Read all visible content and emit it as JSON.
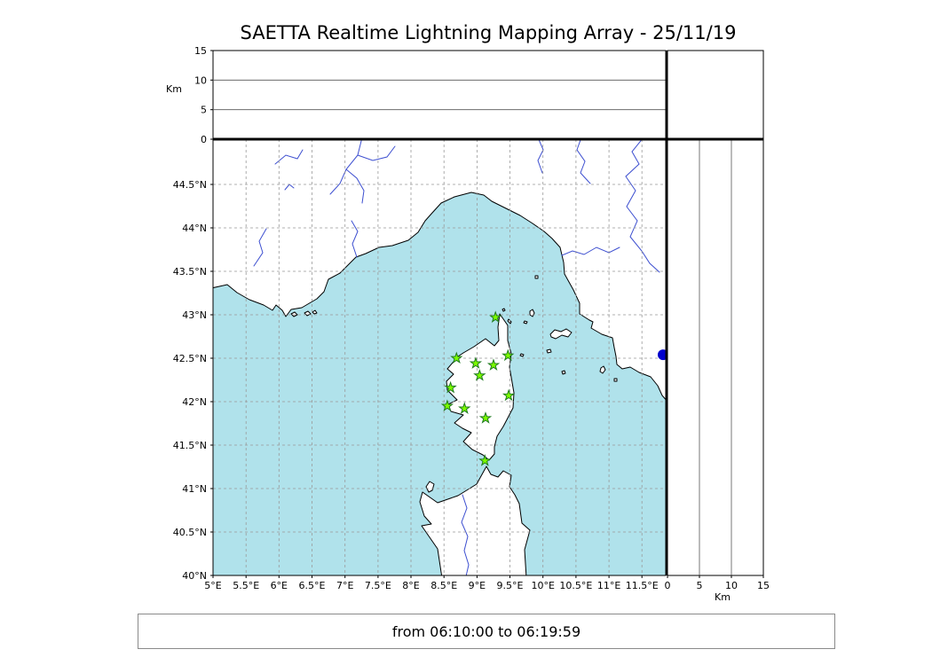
{
  "title": "SAETTA Realtime Lightning Mapping Array - 25/11/19",
  "footer": {
    "time_range": "from 06:10:00 to 06:19:59"
  },
  "map": {
    "lon_min": 5.0,
    "lon_max": 11.86,
    "lat_min": 40.0,
    "lat_max": 45.02,
    "lon_ticks": [
      5,
      5.5,
      6,
      6.5,
      7,
      7.5,
      8,
      8.5,
      9,
      9.5,
      10,
      10.5,
      11,
      11.5
    ],
    "lon_tick_labels": [
      "5°E",
      "5.5°E",
      "6°E",
      "6.5°E",
      "7°E",
      "7.5°E",
      "8°E",
      "8.5°E",
      "9°E",
      "9.5°E",
      "10°E",
      "10.5°E",
      "11°E",
      "11.5°E"
    ],
    "lat_ticks": [
      40,
      40.5,
      41,
      41.5,
      42,
      42.5,
      43,
      43.5,
      44,
      44.5
    ],
    "lat_tick_labels": [
      "40°N",
      "40.5°N",
      "41°N",
      "41.5°N",
      "42°N",
      "42.5°N",
      "43°N",
      "43.5°N",
      "44°N",
      "44.5°N"
    ]
  },
  "altitude_axis": {
    "label": "Km",
    "min": 0,
    "max": 15,
    "ticks": [
      0,
      5,
      10,
      15
    ],
    "tick_labels": [
      "0",
      "5",
      "10",
      "15"
    ],
    "gridlines": [
      5,
      10
    ]
  },
  "stations": [
    {
      "lon": 9.28,
      "lat": 42.97
    },
    {
      "lon": 8.69,
      "lat": 42.5
    },
    {
      "lon": 8.98,
      "lat": 42.44
    },
    {
      "lon": 9.25,
      "lat": 42.42
    },
    {
      "lon": 9.47,
      "lat": 42.53
    },
    {
      "lon": 9.04,
      "lat": 42.3
    },
    {
      "lon": 8.6,
      "lat": 42.16
    },
    {
      "lon": 9.48,
      "lat": 42.07
    },
    {
      "lon": 8.55,
      "lat": 41.95
    },
    {
      "lon": 8.81,
      "lat": 41.92
    },
    {
      "lon": 9.13,
      "lat": 41.81
    },
    {
      "lon": 9.12,
      "lat": 41.32
    }
  ],
  "event_dot": {
    "lon": 11.82,
    "lat": 42.54
  },
  "colors": {
    "sea": "#b0e2eb",
    "land": "#ffffff",
    "coast": "#000000",
    "grid": "#999999",
    "river": "#3d4fd0",
    "station_fill": "#7cfc00",
    "station_stroke": "#1f7a1f",
    "event": "#0000cc",
    "panel_grid": "#555555"
  }
}
